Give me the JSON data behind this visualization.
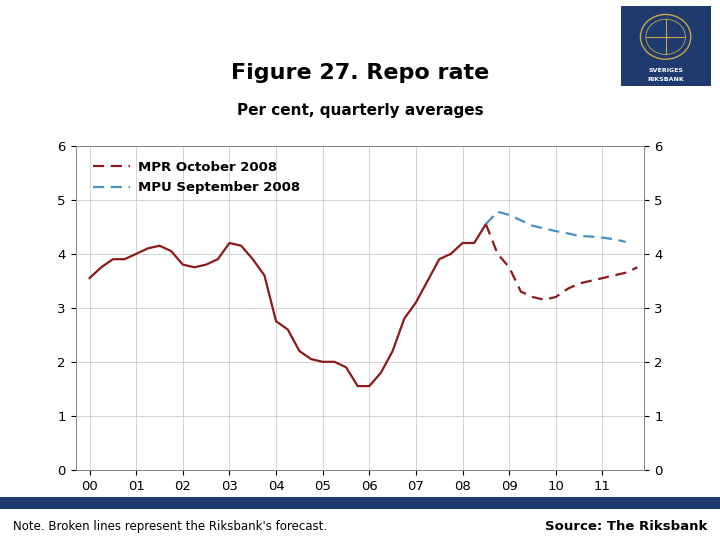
{
  "title": "Figure 27. Repo rate",
  "subtitle": "Per cent, quarterly averages",
  "note": "Note. Broken lines represent the Riksbank's forecast.",
  "source": "Source: The Riksbank",
  "title_fontsize": 16,
  "subtitle_fontsize": 11,
  "background_color": "#ffffff",
  "grid_color": "#cccccc",
  "solid_color": "#8b1a1a",
  "dashed_red_color": "#8b1a1a",
  "dashed_blue_color": "#4a90c0",
  "ylim": [
    0,
    6
  ],
  "yticks": [
    0,
    1,
    2,
    3,
    4,
    5,
    6
  ],
  "legend_labels": [
    "MPR October 2008",
    "MPU September 2008"
  ],
  "footer_bar_color": "#1e3a6e",
  "solid_x": [
    2000.0,
    2000.25,
    2000.5,
    2000.75,
    2001.0,
    2001.25,
    2001.5,
    2001.75,
    2002.0,
    2002.25,
    2002.5,
    2002.75,
    2003.0,
    2003.25,
    2003.5,
    2003.75,
    2004.0,
    2004.25,
    2004.5,
    2004.75,
    2005.0,
    2005.25,
    2005.5,
    2005.75,
    2006.0,
    2006.25,
    2006.5,
    2006.75,
    2007.0,
    2007.25,
    2007.5,
    2007.75,
    2008.0,
    2008.25,
    2008.5
  ],
  "solid_y": [
    3.55,
    3.75,
    3.9,
    3.9,
    4.0,
    4.1,
    4.15,
    4.05,
    3.8,
    3.75,
    3.8,
    3.9,
    4.2,
    4.15,
    3.9,
    3.6,
    2.75,
    2.6,
    2.2,
    2.05,
    2.0,
    2.0,
    1.9,
    1.55,
    1.55,
    1.8,
    2.2,
    2.8,
    3.1,
    3.5,
    3.9,
    4.0,
    4.2,
    4.2,
    4.55
  ],
  "dashed_red_x": [
    2008.5,
    2008.75,
    2009.0,
    2009.25,
    2009.5,
    2009.75,
    2010.0,
    2010.25,
    2010.5,
    2010.75,
    2011.0,
    2011.25,
    2011.5,
    2011.75
  ],
  "dashed_red_y": [
    4.55,
    4.0,
    3.75,
    3.3,
    3.2,
    3.15,
    3.2,
    3.35,
    3.45,
    3.5,
    3.55,
    3.6,
    3.65,
    3.75
  ],
  "dashed_blue_x": [
    2008.5,
    2008.75,
    2009.0,
    2009.25,
    2009.5,
    2009.75,
    2010.0,
    2010.25,
    2010.5,
    2010.75,
    2011.0,
    2011.25,
    2011.5
  ],
  "dashed_blue_y": [
    4.55,
    4.78,
    4.72,
    4.62,
    4.52,
    4.47,
    4.42,
    4.38,
    4.33,
    4.32,
    4.3,
    4.27,
    4.22
  ],
  "xtick_positions": [
    2000,
    2001,
    2002,
    2003,
    2004,
    2005,
    2006,
    2007,
    2008,
    2009,
    2010,
    2011
  ],
  "xtick_labels": [
    "00",
    "01",
    "02",
    "03",
    "04",
    "05",
    "06",
    "07",
    "08",
    "09",
    "10",
    "11"
  ],
  "xlim_left": 1999.7,
  "xlim_right": 2011.9
}
